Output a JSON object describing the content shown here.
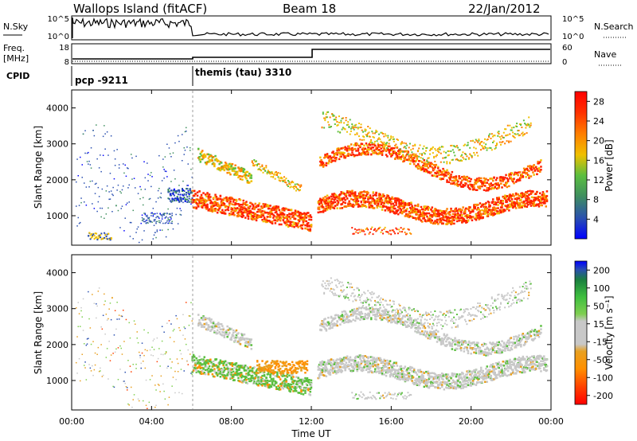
{
  "header": {
    "station": "Wallops Island (fitACF)",
    "beam": "Beam 18",
    "date": "22/Jan/2012"
  },
  "status_panels": {
    "nsky_label": "N.Sky",
    "nsky_ticks": [
      "10^5",
      "10^0"
    ],
    "nsearch_label": "N.Search",
    "nsearch_ticks": [
      "10^5",
      "10^0"
    ],
    "freq_label_line1": "Freq.",
    "freq_label_line2": "[MHz]",
    "freq_ticks": [
      "18",
      "8"
    ],
    "nave_label": "Nave",
    "nave_ticks": [
      "60",
      "0"
    ],
    "cpid_label": "CPID",
    "cpid_modes": [
      {
        "name": "pcp -9211",
        "start": "00:00",
        "end": "06:00"
      },
      {
        "name": "themis (tau) 3310",
        "start": "06:00",
        "end": "24:00"
      }
    ]
  },
  "chart_data": [
    {
      "type": "heatmap",
      "title": "",
      "xlabel": "Time UT",
      "ylabel": "Slant Range [km]",
      "xlim": [
        "00:00",
        "24:00"
      ],
      "x_ticks": [
        "00:00",
        "04:00",
        "08:00",
        "12:00",
        "16:00",
        "20:00",
        "00:00"
      ],
      "ylim": [
        180,
        4500
      ],
      "y_ticks": [
        "1000",
        "2000",
        "3000",
        "4000"
      ],
      "colorbar": {
        "label": "Power [dB]",
        "ticks": [
          "4",
          "8",
          "12",
          "16",
          "20",
          "24",
          "28"
        ],
        "range": [
          0,
          30
        ],
        "colors": [
          "#0000ff",
          "#2a4fb0",
          "#3f8f5f",
          "#5bbf3f",
          "#f0c000",
          "#ff8000",
          "#ff3000",
          "#ff0000"
        ]
      },
      "features": [
        {
          "start_h": 0.0,
          "end_h": 6.0,
          "range_km": [
            700,
            3500
          ],
          "value": 6
        },
        {
          "start_h": 6.0,
          "end_h": 12.0,
          "range_km": [
            800,
            2500
          ],
          "value": 26
        },
        {
          "start_h": 12.0,
          "end_h": 24.0,
          "range_km": [
            900,
            4300
          ],
          "value": 27
        }
      ]
    },
    {
      "type": "heatmap",
      "title": "",
      "xlabel": "Time UT",
      "ylabel": "Slant Range [km]",
      "xlim": [
        "00:00",
        "24:00"
      ],
      "x_ticks": [
        "00:00",
        "04:00",
        "08:00",
        "12:00",
        "16:00",
        "20:00",
        "00:00"
      ],
      "ylim": [
        180,
        4500
      ],
      "y_ticks": [
        "1000",
        "2000",
        "3000",
        "4000"
      ],
      "colorbar": {
        "label": "Velocity [m s⁻¹]",
        "ticks": [
          "200",
          "100",
          "50",
          "15",
          "-15",
          "-50",
          "-100",
          "-200"
        ],
        "range": [
          -250,
          250
        ],
        "colors": [
          "#ff0000",
          "#ff4000",
          "#ff9000",
          "#e8a020",
          "#c8c8c8",
          "#c8c8c8",
          "#7fcf50",
          "#3fbf3f",
          "#1a7f3f",
          "#2a4fb0",
          "#0000ff"
        ]
      },
      "features": [
        {
          "start_h": 0.0,
          "end_h": 6.0,
          "range_km": [
            700,
            3500
          ],
          "value": 0
        },
        {
          "start_h": 6.0,
          "end_h": 12.0,
          "range_km": [
            800,
            2500
          ],
          "value": 40
        },
        {
          "start_h": 12.0,
          "end_h": 24.0,
          "range_km": [
            900,
            4300
          ],
          "value": 0
        }
      ]
    }
  ]
}
